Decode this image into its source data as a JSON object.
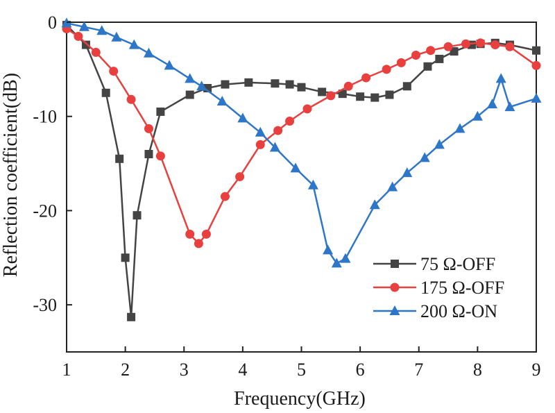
{
  "chart_data": {
    "type": "line",
    "title": "",
    "xlabel": "Frequency(GHz)",
    "ylabel": "Reflection coefficient(dB)",
    "xlim": [
      1,
      9
    ],
    "ylim": [
      -35,
      0
    ],
    "xticks": [
      1,
      2,
      3,
      4,
      5,
      6,
      7,
      8,
      9
    ],
    "yticks": [
      0,
      -10,
      -20,
      -30
    ],
    "xtick_labels": [
      "1",
      "2",
      "3",
      "4",
      "5",
      "6",
      "7",
      "8",
      "9"
    ],
    "ytick_labels": [
      "0",
      "-10",
      "-20",
      "-30"
    ],
    "grid": false,
    "legend_position": "bottom-right",
    "series": [
      {
        "name": "75 Ω-OFF",
        "color": "#444444",
        "marker": "square",
        "x": [
          1.0,
          1.33,
          1.67,
          1.9,
          2.0,
          2.1,
          2.2,
          2.4,
          2.6,
          3.1,
          3.4,
          3.7,
          4.1,
          4.55,
          4.8,
          5.0,
          5.35,
          5.7,
          6.0,
          6.25,
          6.5,
          6.8,
          7.15,
          7.35,
          7.6,
          7.9,
          8.05,
          8.3,
          8.55,
          9.0
        ],
        "y": [
          -0.3,
          -2.4,
          -7.5,
          -14.5,
          -25.0,
          -31.3,
          -20.5,
          -14.0,
          -9.5,
          -7.7,
          -7.0,
          -6.6,
          -6.4,
          -6.5,
          -6.6,
          -6.9,
          -7.4,
          -7.6,
          -7.9,
          -8.0,
          -7.7,
          -6.8,
          -4.7,
          -3.9,
          -3.1,
          -2.4,
          -2.3,
          -2.2,
          -2.4,
          -3.0
        ]
      },
      {
        "name": "175 Ω-OFF",
        "color": "#e8403e",
        "marker": "circle",
        "x": [
          1.0,
          1.2,
          1.5,
          1.8,
          2.1,
          2.4,
          2.6,
          3.1,
          3.25,
          3.38,
          3.7,
          3.95,
          4.3,
          4.6,
          4.8,
          5.1,
          5.5,
          5.8,
          6.1,
          6.45,
          6.7,
          6.95,
          7.2,
          7.5,
          7.8,
          8.05,
          8.3,
          8.55,
          9.0
        ],
        "y": [
          -0.7,
          -1.5,
          -3.2,
          -5.2,
          -8.2,
          -11.3,
          -14.2,
          -22.5,
          -23.5,
          -22.5,
          -18.5,
          -16.4,
          -13.0,
          -11.5,
          -10.5,
          -9.2,
          -7.8,
          -6.8,
          -5.9,
          -5.0,
          -4.3,
          -3.5,
          -3.0,
          -2.6,
          -2.3,
          -2.2,
          -2.4,
          -2.6,
          -4.6
        ]
      },
      {
        "name": "200 Ω-ON",
        "color": "#2e76c8",
        "marker": "triangle",
        "x": [
          1.0,
          1.3,
          1.6,
          1.85,
          2.15,
          2.4,
          2.75,
          3.1,
          3.3,
          3.65,
          4.0,
          4.3,
          4.55,
          4.9,
          5.2,
          5.45,
          5.6,
          5.75,
          6.25,
          6.55,
          6.8,
          7.1,
          7.35,
          7.7,
          8.0,
          8.25,
          8.4,
          8.55,
          9.0
        ],
        "y": [
          -0.1,
          -0.5,
          -0.9,
          -1.6,
          -2.4,
          -3.3,
          -4.6,
          -6.0,
          -6.8,
          -8.4,
          -10.2,
          -11.7,
          -13.3,
          -15.5,
          -17.3,
          -24.2,
          -25.6,
          -25.1,
          -19.4,
          -17.5,
          -16.0,
          -14.4,
          -13.0,
          -11.3,
          -10.0,
          -8.7,
          -6.0,
          -9.0,
          -8.1
        ]
      }
    ]
  }
}
